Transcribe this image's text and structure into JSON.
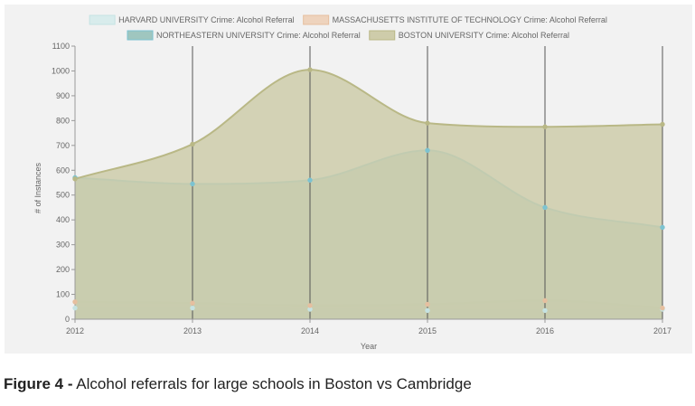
{
  "chart_data": {
    "type": "area",
    "x": [
      "2012",
      "2013",
      "2014",
      "2015",
      "2016",
      "2017"
    ],
    "ylim": [
      0,
      1100
    ],
    "yticks": [
      0,
      100,
      200,
      300,
      400,
      500,
      600,
      700,
      800,
      900,
      1000,
      1100
    ],
    "xlabel": "Year",
    "ylabel": "# of Instances",
    "grid": "vertical lines at each year",
    "legend_position": "top",
    "series": [
      {
        "name": "HARVARD UNIVERSITY Crime: Alcohol Referral",
        "values": [
          45,
          45,
          40,
          35,
          35,
          40
        ],
        "fill": "#d8ecec",
        "stroke": "#c5e3e3"
      },
      {
        "name": "MASSACHUSETTS INSTITUTE OF TECHNOLOGY Crime: Alcohol Referral",
        "values": [
          70,
          65,
          55,
          60,
          75,
          45
        ],
        "fill": "#eed3bd",
        "stroke": "#e6bf9f"
      },
      {
        "name": "NORTHEASTERN UNIVERSITY Crime: Alcohol Referral",
        "values": [
          570,
          545,
          560,
          680,
          450,
          370
        ],
        "fill": "#9fc6bf",
        "stroke": "#7cc3d1"
      },
      {
        "name": "BOSTON UNIVERSITY Crime: Alcohol Referral",
        "values": [
          565,
          705,
          1005,
          790,
          775,
          785
        ],
        "fill": "#ceccaa",
        "stroke": "#b9b886"
      }
    ]
  },
  "caption": {
    "label": "Figure 4 -",
    "text": " Alcohol referrals for large schools in Boston vs Cambridge"
  }
}
